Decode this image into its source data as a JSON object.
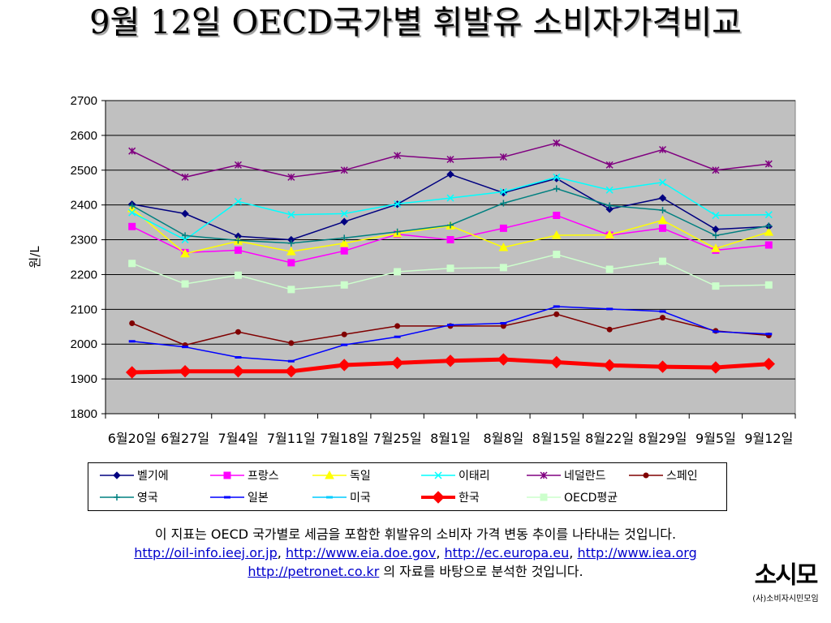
{
  "page": {
    "title": "9월 12일 OECD국가별 휘발유 소비자가격비교",
    "caption_line1": "이 지표는 OECD 국가별로 세금을 포함한 휘발유의 소비자 가격 변동 추이를 나타내는 것입니다.",
    "links": [
      "http://oil-info.ieej.or.jp",
      "http://www.eia.doe.gov",
      "http://ec.europa.eu",
      "http://www.iea.org",
      "http://petronet.co.kr"
    ],
    "link_sep": ", ",
    "caption_line3_suffix": " 의 자료를 바탕으로 분석한 것입니다.",
    "logo_text": "소시모",
    "logo_sub": "(사)소비자시민모임"
  },
  "chart_data": {
    "type": "line",
    "title": "9월 12일 OECD국가별 휘발유 소비자가격비교",
    "xlabel": "",
    "ylabel": "원/L",
    "ylim": [
      1800,
      2700
    ],
    "yticks": [
      1800,
      1900,
      2000,
      2100,
      2200,
      2300,
      2400,
      2500,
      2600,
      2700
    ],
    "grid": true,
    "legend": "bottom",
    "categories": [
      "6월20일",
      "6월27일",
      "7월4일",
      "7월11일",
      "7월18일",
      "7월25일",
      "8월1일",
      "8월8일",
      "8월15일",
      "8월22일",
      "8월29일",
      "9월5일",
      "9월12일"
    ],
    "series": [
      {
        "name": "벨기에",
        "color": "#000080",
        "marker": "diamond",
        "values": [
          2402,
          2375,
          2310,
          2300,
          2352,
          2402,
          2488,
          2435,
          2476,
          2388,
          2420,
          2330,
          2338
        ]
      },
      {
        "name": "프랑스",
        "color": "#ff00ff",
        "marker": "square",
        "values": [
          2338,
          2263,
          2270,
          2234,
          2268,
          2316,
          2300,
          2333,
          2370,
          2313,
          2333,
          2270,
          2285
        ]
      },
      {
        "name": "독일",
        "color": "#ffff00",
        "marker": "triangle",
        "values": [
          2390,
          2260,
          2296,
          2266,
          2290,
          2318,
          2340,
          2278,
          2313,
          2314,
          2356,
          2275,
          2322
        ]
      },
      {
        "name": "이태리",
        "color": "#00ffff",
        "marker": "x",
        "values": [
          2378,
          2300,
          2410,
          2372,
          2375,
          2403,
          2420,
          2438,
          2480,
          2443,
          2465,
          2370,
          2372
        ]
      },
      {
        "name": "네덜란드",
        "color": "#800080",
        "marker": "star",
        "values": [
          2555,
          2480,
          2515,
          2480,
          2500,
          2542,
          2531,
          2538,
          2578,
          2515,
          2559,
          2500,
          2518
        ]
      },
      {
        "name": "스페인",
        "color": "#800000",
        "marker": "circle",
        "values": [
          2060,
          1997,
          2035,
          2003,
          2028,
          2052,
          2052,
          2052,
          2086,
          2042,
          2076,
          2038,
          2025
        ]
      },
      {
        "name": "영국",
        "color": "#008080",
        "marker": "plus",
        "values": [
          2398,
          2312,
          2298,
          2290,
          2305,
          2323,
          2342,
          2405,
          2447,
          2398,
          2385,
          2312,
          2340
        ]
      },
      {
        "name": "일본",
        "color": "#0000ff",
        "marker": "dash",
        "values": [
          2008,
          1992,
          1962,
          1951,
          1998,
          2021,
          2055,
          2060,
          2108,
          2101,
          2094,
          2036,
          2029
        ]
      },
      {
        "name": "미국",
        "color": "#00ccff",
        "marker": "dash",
        "values": [
          null,
          null,
          null,
          null,
          null,
          null,
          null,
          null,
          null,
          null,
          null,
          null,
          null
        ]
      },
      {
        "name": "한국",
        "color": "#ff0000",
        "marker": "diamond",
        "values": [
          1919,
          1922,
          1922,
          1922,
          1940,
          1946,
          1952,
          1956,
          1948,
          1939,
          1935,
          1933,
          1943
        ]
      },
      {
        "name": "OECD평균",
        "color": "#ccffcc",
        "marker": "square",
        "values": [
          2232,
          2173,
          2198,
          2157,
          2170,
          2208,
          2218,
          2220,
          2258,
          2215,
          2238,
          2167,
          2170
        ]
      }
    ]
  }
}
